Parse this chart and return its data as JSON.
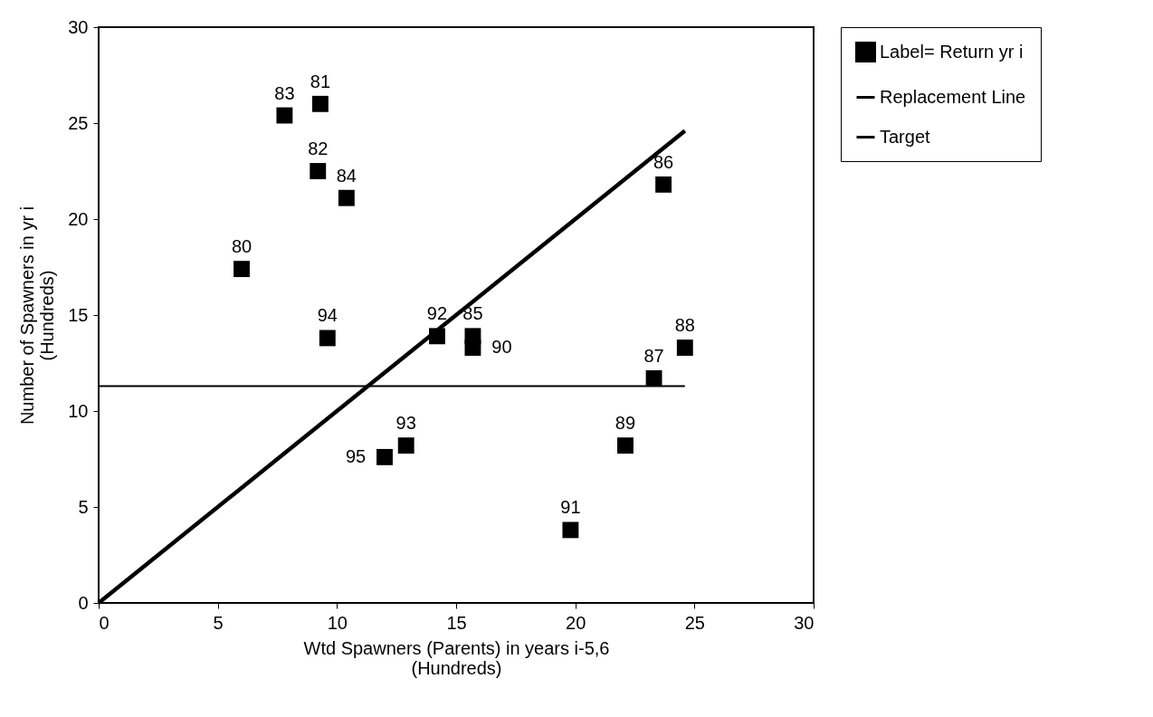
{
  "chart_data": {
    "type": "scatter",
    "xlabel": "Wtd Spawners (Parents) in years i-5,6\n(Hundreds)",
    "ylabel": "Number of Spawners in yr i\n(Hundreds)",
    "xlim": [
      0,
      30
    ],
    "xticks": [
      0,
      5,
      10,
      15,
      20,
      25,
      30
    ],
    "ylim": [
      0,
      30
    ],
    "yticks": [
      0,
      5,
      10,
      15,
      20,
      25,
      30
    ],
    "grid": false,
    "legend": "right",
    "series": [
      {
        "name": "Label= Return yr i",
        "type": "scatter",
        "marker": "square",
        "color": "#000000",
        "x": [
          6.0,
          9.3,
          9.2,
          7.8,
          10.4,
          15.7,
          23.7,
          23.3,
          24.6,
          22.1,
          15.7,
          19.8,
          14.2,
          12.9,
          9.6,
          12.0
        ],
        "values": [
          17.4,
          26.0,
          22.5,
          25.4,
          21.1,
          13.9,
          21.8,
          11.7,
          13.3,
          8.2,
          13.3,
          3.8,
          13.9,
          8.2,
          13.8,
          7.6
        ]
      },
      {
        "name": "Replacement Line",
        "type": "line",
        "marker": "none",
        "color": "#000000",
        "x": [
          0,
          24.6
        ],
        "values": [
          0,
          24.6
        ]
      },
      {
        "name": "Target",
        "type": "line",
        "marker": "none",
        "color": "#000000",
        "x": [
          0,
          24.6
        ],
        "values": [
          11.3,
          11.3
        ]
      }
    ],
    "annotations": [
      {
        "text": "80",
        "x": 6.0,
        "y": 17.4
      },
      {
        "text": "81",
        "x": 9.3,
        "y": 26.0
      },
      {
        "text": "82",
        "x": 9.2,
        "y": 22.5
      },
      {
        "text": "83",
        "x": 7.8,
        "y": 25.4
      },
      {
        "text": "84",
        "x": 10.4,
        "y": 21.1
      },
      {
        "text": "85",
        "x": 15.7,
        "y": 13.9
      },
      {
        "text": "86",
        "x": 23.7,
        "y": 21.8
      },
      {
        "text": "87",
        "x": 23.3,
        "y": 11.7
      },
      {
        "text": "88",
        "x": 24.6,
        "y": 13.3
      },
      {
        "text": "89",
        "x": 22.1,
        "y": 8.2
      },
      {
        "text": "90",
        "x": 15.7,
        "y": 13.3
      },
      {
        "text": "91",
        "x": 19.8,
        "y": 3.8
      },
      {
        "text": "92",
        "x": 14.2,
        "y": 13.9
      },
      {
        "text": "93",
        "x": 12.9,
        "y": 8.2
      },
      {
        "text": "94",
        "x": 9.6,
        "y": 13.8
      },
      {
        "text": "95",
        "x": 12.0,
        "y": 7.6
      }
    ]
  }
}
